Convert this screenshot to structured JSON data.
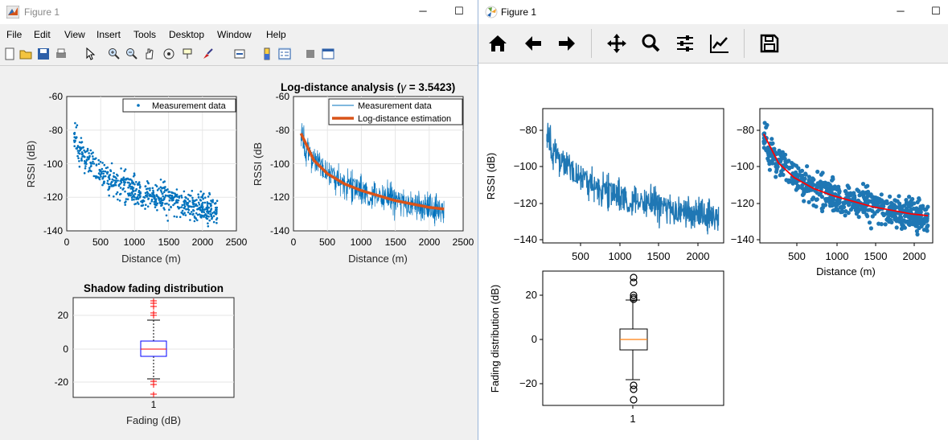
{
  "matlab": {
    "title": "Figure 1",
    "menu": [
      "File",
      "Edit",
      "View",
      "Insert",
      "Tools",
      "Desktop",
      "Window",
      "Help"
    ],
    "toolbar_icons": [
      "new-figure-icon",
      "open-icon",
      "save-icon",
      "print-icon",
      "pointer-icon",
      "zoom-in-icon",
      "zoom-out-icon",
      "pan-icon",
      "rotate-icon",
      "data-cursor-icon",
      "brush-icon",
      "link-icon",
      "colorbar-icon",
      "legend-icon",
      "hide-tools-icon",
      "dock-icon"
    ],
    "plot1": {
      "xlabel": "Distance (m)",
      "ylabel": "RSSI (dB)",
      "xticks": [
        "0",
        "500",
        "1000",
        "1500",
        "2000",
        "2500"
      ],
      "yticks": [
        "-60",
        "-80",
        "-100",
        "-120",
        "-140"
      ],
      "legend": "Measurement data"
    },
    "plot2": {
      "title": "Log-distance analysis (",
      "title_symbol": "γ",
      "title_rest": " = 3.5423)",
      "xlabel": "Distance (m)",
      "ylabel": "RSSI (dB",
      "xticks": [
        "0",
        "500",
        "1000",
        "1500",
        "2000",
        "2500"
      ],
      "yticks": [
        "-60",
        "-80",
        "-100",
        "-120",
        "-140"
      ],
      "legend1": "Measurement data",
      "legend2": "Log-distance estimation"
    },
    "plot3": {
      "title": "Shadow fading distribution",
      "xlabel": "Fading (dB)",
      "xtick": "1",
      "yticks": [
        "20",
        "0",
        "-20"
      ]
    }
  },
  "pyplot": {
    "title": "Figure 1",
    "toolbar_icons": [
      "home-icon",
      "back-icon",
      "forward-icon",
      "pan-icon",
      "zoom-icon",
      "configure-subplots-icon",
      "edit-axis-icon",
      "save-icon"
    ],
    "plot1": {
      "ylabel": "RSSI (dB)",
      "xticks": [
        "500",
        "1000",
        "1500",
        "2000"
      ],
      "yticks": [
        "−80",
        "−100",
        "−120",
        "−140"
      ]
    },
    "plot2": {
      "xlabel": "Distance (m)",
      "xticks": [
        "500",
        "1000",
        "1500",
        "2000"
      ],
      "yticks": [
        "−80",
        "−100",
        "−120",
        "−140"
      ]
    },
    "plot3": {
      "ylabel": "Fading distribution (dB)",
      "xtick": "1",
      "yticks": [
        "20",
        "0",
        "−20"
      ]
    }
  },
  "chart_data": [
    {
      "type": "scatter",
      "title": "",
      "xlabel": "Distance (m)",
      "ylabel": "RSSI (dB)",
      "xlim": [
        0,
        2500
      ],
      "ylim": [
        -140,
        -60
      ],
      "legend": [
        "Measurement data"
      ],
      "model": {
        "gamma": 3.5423,
        "x": [
          110,
          2220
        ],
        "y_range": [
          -140,
          -72
        ]
      },
      "color": "#0072bd"
    },
    {
      "type": "line",
      "title": "Log-distance analysis (γ = 3.5423)",
      "xlabel": "Distance (m)",
      "ylabel": "RSSI (dB",
      "xlim": [
        0,
        2500
      ],
      "ylim": [
        -140,
        -60
      ],
      "series": [
        {
          "name": "Measurement data",
          "x_range": [
            110,
            2220
          ]
        },
        {
          "name": "Log-distance estimation",
          "x": [
            110,
            300,
            500,
            750,
            1000,
            1250,
            1500,
            1750,
            2000,
            2220
          ],
          "values": [
            -82,
            -98,
            -106,
            -112,
            -116,
            -119,
            -122,
            -124,
            -126,
            -127
          ]
        }
      ],
      "legend_placement": "top-right",
      "colors": [
        "#0072bd",
        "#d95319"
      ]
    },
    {
      "type": "box",
      "title": "Shadow fading distribution",
      "xlabel": "Fading (dB)",
      "categories": [
        "1"
      ],
      "ylim": [
        -29,
        29
      ],
      "median": 0,
      "q1": -4.5,
      "q3": 4,
      "whisker_low": -18,
      "whisker_high": 17.5,
      "outliers": [
        19,
        20,
        22,
        24,
        26,
        27,
        28,
        -20,
        -21,
        -24,
        -27
      ],
      "colors": [
        "#0000ff",
        "#ff0000"
      ]
    },
    {
      "type": "line",
      "xlabel": "",
      "ylabel": "RSSI (dB)",
      "xlim": [
        60,
        2280
      ],
      "ylim": [
        -142,
        -68
      ],
      "series": [
        {
          "name": "measurement",
          "x_range": [
            100,
            2220
          ]
        }
      ],
      "color": "#1f77b4"
    },
    {
      "type": "scatter",
      "xlabel": "Distance (m)",
      "ylabel": "",
      "xlim": [
        60,
        2280
      ],
      "ylim": [
        -142,
        -68
      ],
      "model": {
        "x": [
          110,
          300,
          500,
          750,
          1000,
          1250,
          1500,
          1750,
          2000,
          2220
        ],
        "values": [
          -82,
          -98,
          -106,
          -112,
          -116,
          -119,
          -122,
          -124,
          -126,
          -127
        ]
      },
      "colors": [
        "#1f77b4",
        "#ff0000"
      ]
    },
    {
      "type": "box",
      "ylabel": "Fading distribution (dB)",
      "categories": [
        "1"
      ],
      "ylim": [
        -30,
        30
      ],
      "median": 0,
      "q1": -4.5,
      "q3": 4,
      "whisker_low": -18,
      "whisker_high": 17.5,
      "outliers": [
        18,
        19,
        20,
        26,
        27,
        28,
        -20,
        -22,
        -27
      ]
    }
  ]
}
